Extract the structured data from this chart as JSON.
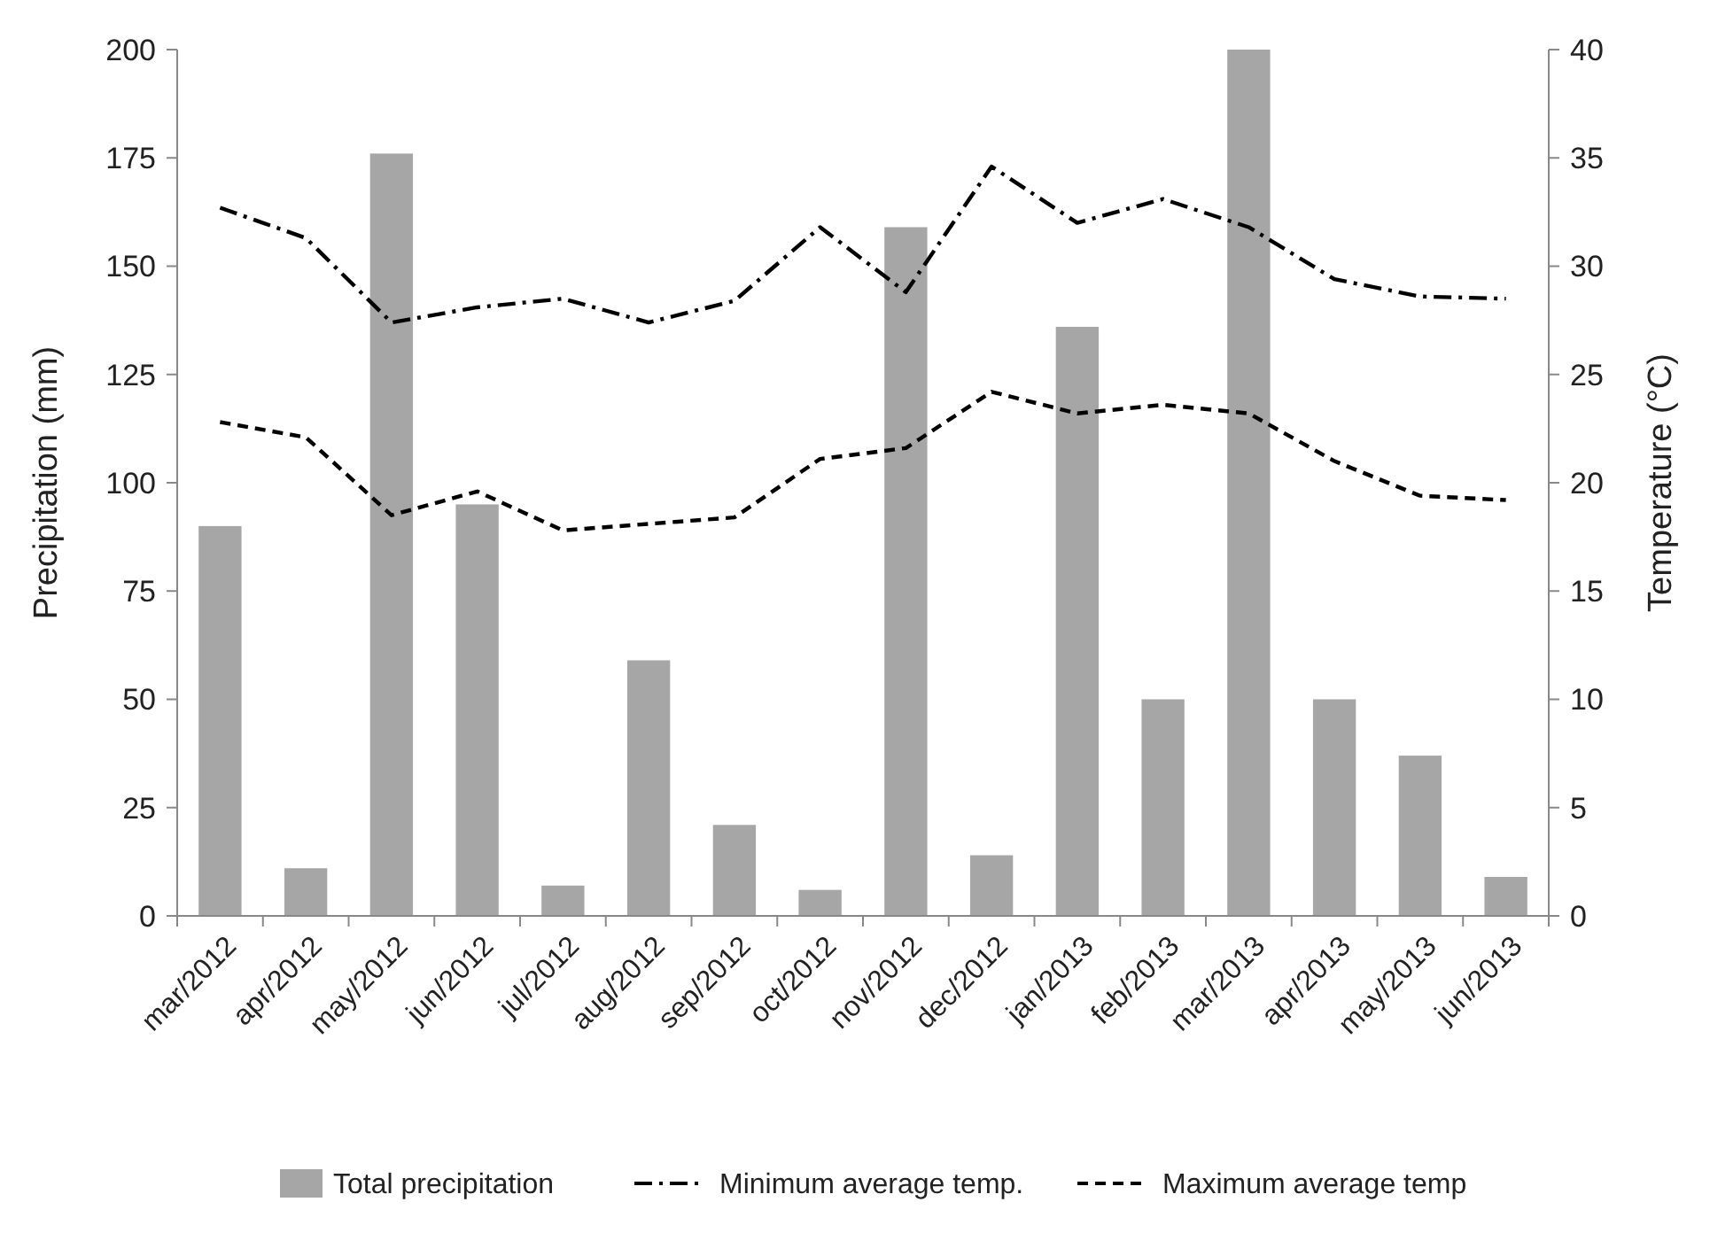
{
  "chart_data": {
    "type": "bar",
    "categories": [
      "mar/2012",
      "apr/2012",
      "may/2012",
      "jun/2012",
      "jul/2012",
      "aug/2012",
      "sep/2012",
      "oct/2012",
      "nov/2012",
      "dec/2012",
      "jan/2013",
      "feb/2013",
      "mar/2013",
      "apr/2013",
      "may/2013",
      "jun/2013"
    ],
    "ylabel": "Precipitation (mm)",
    "y2label": "Temperature (°C)",
    "ylim": [
      0,
      200
    ],
    "yticks": [
      0,
      25,
      50,
      75,
      100,
      125,
      150,
      175,
      200
    ],
    "y2lim": [
      0,
      40
    ],
    "y2ticks": [
      0,
      5,
      10,
      15,
      20,
      25,
      30,
      35,
      40
    ],
    "legend": "bottom",
    "grid": false,
    "series": [
      {
        "name": "Total precipitation",
        "color": "#a6a6a6",
        "values": [
          90,
          11,
          176,
          95,
          7,
          59,
          21,
          6,
          159,
          14,
          136,
          50,
          200,
          50,
          37,
          9
        ]
      },
      {
        "name": "Minimum average temp.",
        "type": "line",
        "axis": "y2",
        "color": "#000000",
        "line_style": "dashdot",
        "values": [
          32.7,
          31.3,
          27.4,
          28.1,
          28.5,
          27.4,
          28.4,
          31.8,
          28.8,
          34.6,
          32.0,
          33.1,
          31.8,
          29.4,
          28.6,
          28.5
        ]
      },
      {
        "name": "Maximum average temp",
        "type": "line",
        "axis": "y2",
        "color": "#000000",
        "line_style": "dashed",
        "values": [
          22.8,
          22.1,
          18.5,
          19.6,
          17.8,
          18.1,
          18.4,
          21.1,
          21.6,
          24.2,
          23.2,
          23.6,
          23.2,
          21.0,
          19.4,
          19.2
        ]
      }
    ]
  }
}
